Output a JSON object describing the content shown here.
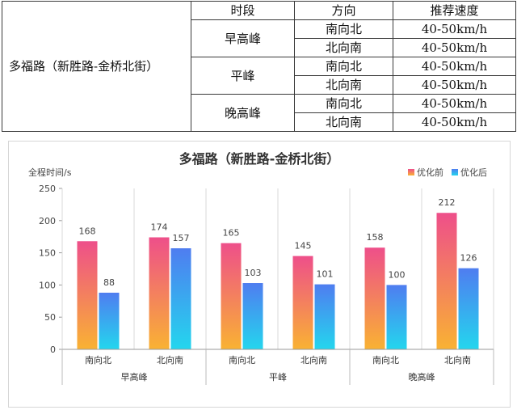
{
  "table": {
    "headers": [
      "时段",
      "方向",
      "推荐速度"
    ],
    "road": "多福路（新胜路-金桥北街）",
    "rows": [
      {
        "period": "早高峰",
        "directions": [
          "南向北",
          "北向南"
        ],
        "speeds": [
          "40-50km/h",
          "40-50km/h"
        ]
      },
      {
        "period": "平峰",
        "directions": [
          "南向北",
          "北向南"
        ],
        "speeds": [
          "40-50km/h",
          "40-50km/h"
        ]
      },
      {
        "period": "晚高峰",
        "directions": [
          "南向北",
          "北向南"
        ],
        "speeds": [
          "40-50km/h",
          "40-50km/h"
        ]
      }
    ]
  },
  "chart_data": {
    "type": "bar",
    "title": "多福路（新胜路-金桥北街）",
    "ylabel": "全程时间/s",
    "ylim": [
      0,
      250
    ],
    "yticks": [
      0,
      50,
      100,
      150,
      200,
      250
    ],
    "categories": [
      "南向北",
      "北向南",
      "南向北",
      "北向南",
      "南向北",
      "北向南"
    ],
    "groups": [
      "早高峰",
      "平峰",
      "晚高峰"
    ],
    "series": [
      {
        "name": "优化前",
        "values": [
          168,
          174,
          165,
          145,
          158,
          212
        ],
        "color_top": "#ee4f8a",
        "color_bottom": "#f9b233"
      },
      {
        "name": "优化后",
        "values": [
          88,
          157,
          103,
          101,
          100,
          126
        ],
        "color_top": "#4f7df0",
        "color_bottom": "#24d6ee"
      }
    ],
    "legend_position": "top-right",
    "grid": false
  }
}
